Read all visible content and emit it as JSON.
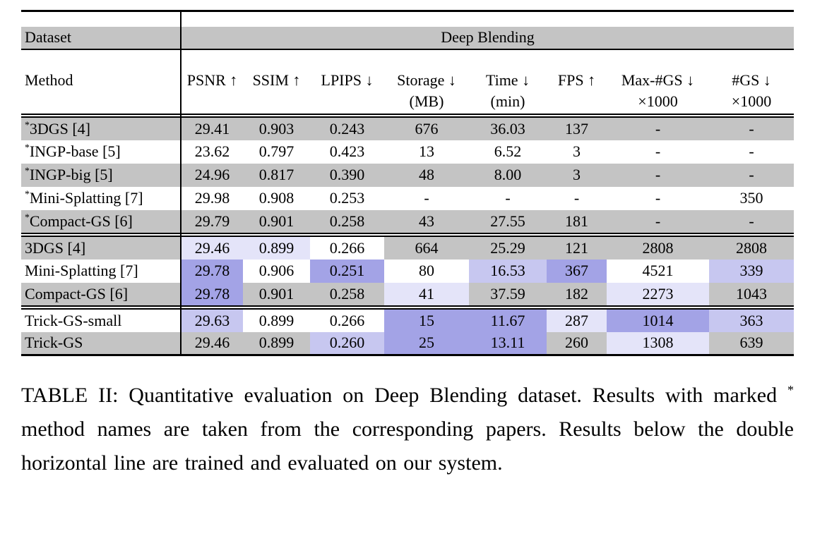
{
  "table": {
    "star_marker": "*",
    "dataset_label": "Dataset",
    "dataset_value": "Deep Blending",
    "method_label": "Method",
    "columns": [
      {
        "line1": "PSNR ↑",
        "line2": ""
      },
      {
        "line1": "SSIM ↑",
        "line2": ""
      },
      {
        "line1": "LPIPS ↓",
        "line2": ""
      },
      {
        "line1": "Storage ↓",
        "line2": "(MB)"
      },
      {
        "line1": "Time ↓",
        "line2": "(min)"
      },
      {
        "line1": "FPS ↑",
        "line2": ""
      },
      {
        "line1": "Max-#GS ↓",
        "line2": "×1000"
      },
      {
        "line1": "#GS ↓",
        "line2": "×1000"
      }
    ],
    "row_colors": {
      "shaded": "#c4c4c4",
      "plain": "#ffffff"
    },
    "highlight_colors": {
      "t1": "#a3a3e6",
      "t2": "#c7c7f0",
      "t3": "#e4e4f9",
      "white": "#ffffff"
    },
    "groups": [
      {
        "rows": [
          {
            "star": true,
            "method": "3DGS [4]",
            "shaded": true,
            "values": [
              "29.41",
              "0.903",
              "0.243",
              "676",
              "36.03",
              "137",
              "-",
              "-"
            ],
            "hl": [
              null,
              null,
              null,
              null,
              null,
              null,
              null,
              null
            ]
          },
          {
            "star": true,
            "method": "INGP-base [5]",
            "shaded": false,
            "values": [
              "23.62",
              "0.797",
              "0.423",
              "13",
              "6.52",
              "3",
              "-",
              "-"
            ],
            "hl": [
              null,
              null,
              null,
              null,
              null,
              null,
              null,
              null
            ]
          },
          {
            "star": true,
            "method": "INGP-big [5]",
            "shaded": true,
            "values": [
              "24.96",
              "0.817",
              "0.390",
              "48",
              "8.00",
              "3",
              "-",
              "-"
            ],
            "hl": [
              null,
              null,
              null,
              null,
              null,
              null,
              null,
              null
            ]
          },
          {
            "star": true,
            "method": "Mini-Splatting [7]",
            "shaded": false,
            "values": [
              "29.98",
              "0.908",
              "0.253",
              "-",
              "-",
              "-",
              "-",
              "350"
            ],
            "hl": [
              null,
              null,
              null,
              null,
              null,
              null,
              null,
              null
            ]
          },
          {
            "star": true,
            "method": "Compact-GS [6]",
            "shaded": true,
            "values": [
              "29.79",
              "0.901",
              "0.258",
              "43",
              "27.55",
              "181",
              "-",
              "-"
            ],
            "hl": [
              null,
              null,
              null,
              null,
              null,
              null,
              null,
              null
            ]
          }
        ]
      },
      {
        "rows": [
          {
            "star": false,
            "method": "3DGS [4]",
            "shaded": true,
            "values": [
              "29.46",
              "0.899",
              "0.266",
              "664",
              "25.29",
              "121",
              "2808",
              "2808"
            ],
            "hl": [
              "t3",
              "t3",
              "white",
              null,
              null,
              null,
              null,
              null
            ]
          },
          {
            "star": false,
            "method": "Mini-Splatting [7]",
            "shaded": false,
            "values": [
              "29.78",
              "0.906",
              "0.251",
              "80",
              "16.53",
              "367",
              "4521",
              "339"
            ],
            "hl": [
              "t1",
              null,
              "t1",
              null,
              "t2",
              "t1",
              null,
              "t2"
            ]
          },
          {
            "star": false,
            "method": "Compact-GS [6]",
            "shaded": true,
            "values": [
              "29.78",
              "0.901",
              "0.258",
              "41",
              "37.59",
              "182",
              "2273",
              "1043"
            ],
            "hl": [
              "t1",
              null,
              null,
              "t3",
              null,
              null,
              "t3",
              null
            ]
          }
        ]
      },
      {
        "rows": [
          {
            "star": false,
            "method": "Trick-GS-small",
            "shaded": false,
            "values": [
              "29.63",
              "0.899",
              "0.266",
              "15",
              "11.67",
              "287",
              "1014",
              "363"
            ],
            "hl": [
              "t2",
              null,
              null,
              "t1",
              "t1",
              "t3",
              "t1",
              "t2"
            ]
          },
          {
            "star": false,
            "method": "Trick-GS",
            "shaded": true,
            "values": [
              "29.46",
              "0.899",
              "0.260",
              "25",
              "13.11",
              "260",
              "1308",
              "639"
            ],
            "hl": [
              null,
              null,
              "t2",
              "t1",
              "t1",
              null,
              "t3",
              null
            ]
          }
        ]
      }
    ]
  },
  "caption": {
    "label": "TABLE II:",
    "before_star": "Quantitative evaluation on Deep Blending dataset. Results with marked",
    "star": "*",
    "after_star": "method names are taken from the corresponding papers. Results below the double horizontal line are trained and evaluated on our system."
  }
}
